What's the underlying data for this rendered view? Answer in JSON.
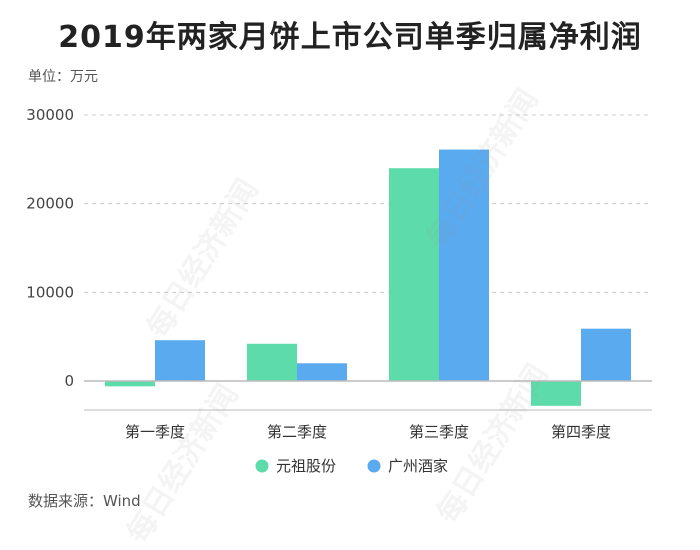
{
  "title": "2019年两家月饼上市公司单季归属净利润",
  "unit": "单位：万元",
  "source": "数据来源：Wind",
  "watermark": "每日经济新闻",
  "chart_data": {
    "type": "bar",
    "categories": [
      "第一季度",
      "第二季度",
      "第三季度",
      "第四季度"
    ],
    "series": [
      {
        "name": "元祖股份",
        "color": "#5edbab",
        "values": [
          -600,
          4200,
          24000,
          -2800
        ]
      },
      {
        "name": "广州酒家",
        "color": "#5aaaf0",
        "values": [
          4600,
          2000,
          26100,
          5900
        ]
      }
    ],
    "yticks": [
      0,
      10000,
      20000,
      30000
    ],
    "ylim": [
      -3200,
      30500
    ],
    "grid": true,
    "legend_position": "bottom"
  }
}
